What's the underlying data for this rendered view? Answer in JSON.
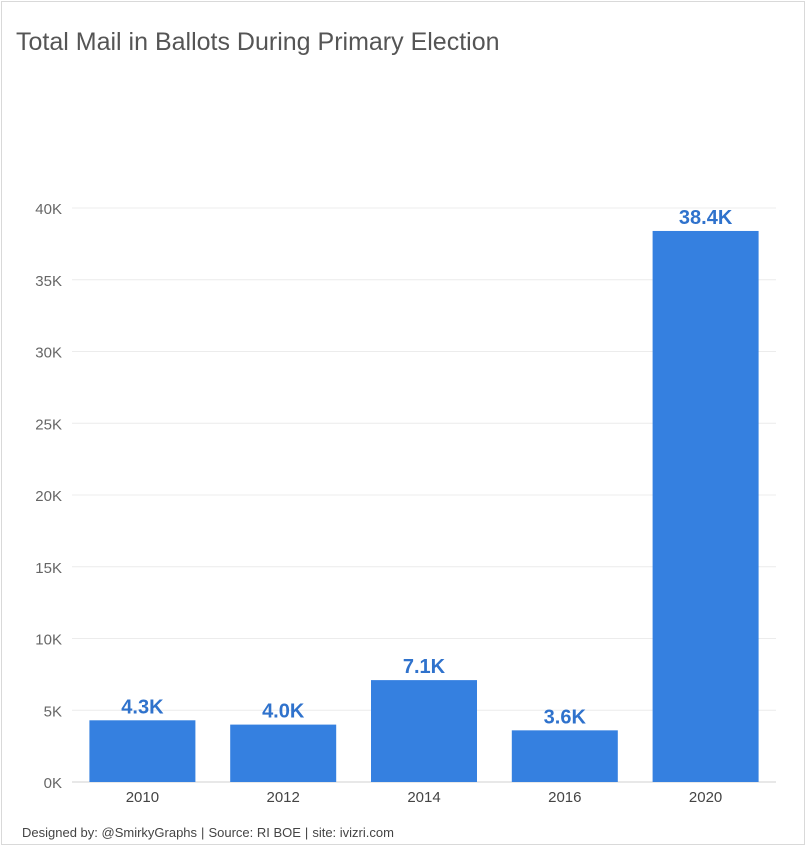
{
  "chart_data": {
    "type": "bar",
    "title": "Total Mail in Ballots During Primary Election",
    "categories": [
      "2010",
      "2012",
      "2014",
      "2016",
      "2020"
    ],
    "values": [
      4300,
      4000,
      7100,
      3600,
      38400
    ],
    "data_labels": [
      "4.3K",
      "4.0K",
      "7.1K",
      "3.6K",
      "38.4K"
    ],
    "ylim": [
      0,
      40000
    ],
    "yticks": [
      0,
      5000,
      10000,
      15000,
      20000,
      25000,
      30000,
      35000,
      40000
    ],
    "ytick_labels": [
      "0K",
      "5K",
      "10K",
      "15K",
      "20K",
      "25K",
      "30K",
      "35K",
      "40K"
    ],
    "xlabel": "",
    "ylabel": "",
    "grid": true,
    "bar_color": "#3580e0",
    "label_color": "#2f72cc"
  },
  "footer": {
    "designed_by": "Designed by: @SmirkyGraphs",
    "source": "Source: RI BOE",
    "site": "site: ivizri.com",
    "separator": "|"
  }
}
